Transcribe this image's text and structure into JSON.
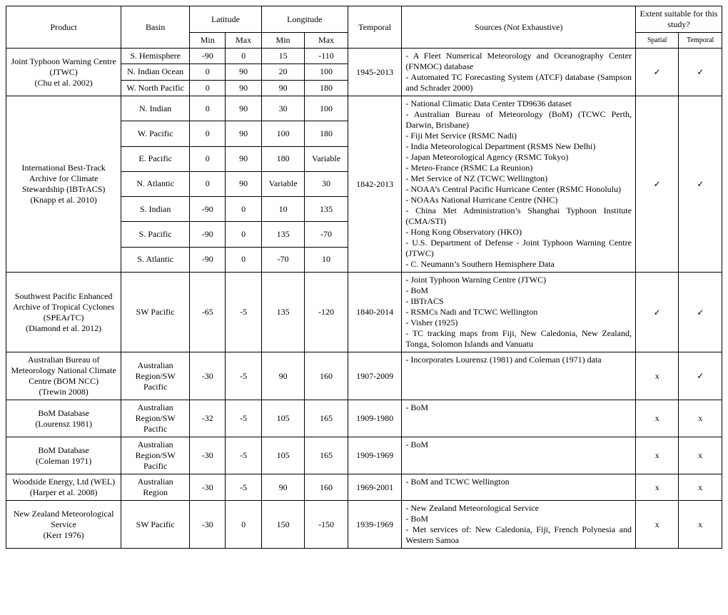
{
  "headers": {
    "product": "Product",
    "basin": "Basin",
    "latitude": "Latitude",
    "longitude": "Longitude",
    "temporal": "Temporal",
    "sources": "Sources (Not Exhaustive)",
    "extent": "Extent suitable for this study?",
    "min": "Min",
    "max": "Max",
    "spatial": "Spatial",
    "temporal2": "Temporal"
  },
  "check": "✓",
  "cross": "x",
  "jtwc": {
    "product": "Joint Typhoon Warning Centre (JTWC)\n(Chu et al. 2002)",
    "basins": [
      {
        "name": "S. Hemisphere",
        "latmin": "-90",
        "latmax": "0",
        "lonmin": "15",
        "lonmax": "-110"
      },
      {
        "name": "N. Indian Ocean",
        "latmin": "0",
        "latmax": "90",
        "lonmin": "20",
        "lonmax": "100"
      },
      {
        "name": "W. North Pacific",
        "latmin": "0",
        "latmax": "90",
        "lonmin": "90",
        "lonmax": "180"
      }
    ],
    "temporal": "1945-2013",
    "sources": "- A Fleet Numerical Meteorology and Oceanography Center (FNMOC) database\n- Automated TC Forecasting System (ATCF) database (Sampson and Schrader 2000)",
    "spatial": "✓",
    "temp": "✓"
  },
  "ibtracs": {
    "product": "International Best-Track Archive for Climate Stewardship (IBTrACS)\n(Knapp et al. 2010)",
    "basins": [
      {
        "name": "N. Indian",
        "latmin": "0",
        "latmax": "90",
        "lonmin": "30",
        "lonmax": "100"
      },
      {
        "name": "W. Pacific",
        "latmin": "0",
        "latmax": "90",
        "lonmin": "100",
        "lonmax": "180"
      },
      {
        "name": "E. Pacific",
        "latmin": "0",
        "latmax": "90",
        "lonmin": "180",
        "lonmax": "Variable"
      },
      {
        "name": "N. Atlantic",
        "latmin": "0",
        "latmax": "90",
        "lonmin": "Variable",
        "lonmax": "30"
      },
      {
        "name": "S. Indian",
        "latmin": "-90",
        "latmax": "0",
        "lonmin": "10",
        "lonmax": "135"
      },
      {
        "name": "S. Pacific",
        "latmin": "-90",
        "latmax": "0",
        "lonmin": "135",
        "lonmax": "-70"
      },
      {
        "name": "S. Atlantic",
        "latmin": "-90",
        "latmax": "0",
        "lonmin": "-70",
        "lonmax": "10"
      }
    ],
    "temporal": "1842-2013",
    "sources": "- National Climatic Data Center TD9636 dataset\n- Australian Bureau of Meteorology (BoM) (TCWC Perth, Darwin, Brisbane)\n- Fiji Met Service (RSMC Nadi)\n- India Meteorological Department (RSMS New Delhi)\n- Japan Meteorological Agency (RSMC Tokyo)\n- Meteo-France (RSMC La Reunion)\n- Met Service of NZ (TCWC Wellington)\n- NOAA’s Central Pacific Hurricane Center (RSMC Honolulu)\n- NOAAs National Hurricane Centre (NHC)\n- China Met Administration’s Shanghai Typhoon Institute (CMA/STI)\n- Hong Kong Observatory (HKO)\n- U.S. Department of Defense - Joint Typhoon Warning Centre (JTWC)\n- C. Neumann’s Southern Hemisphere Data",
    "spatial": "✓",
    "temp": "✓"
  },
  "speartc": {
    "product": "Southwest Pacific Enhanced Archive of Tropical Cyclones (SPEArTC)\n(Diamond et al. 2012)",
    "basin": "SW Pacific",
    "latmin": "-65",
    "latmax": "-5",
    "lonmin": "135",
    "lonmax": "-120",
    "temporal": "1840-2014",
    "sources": "- Joint Typhoon Warning Centre (JTWC)\n- BoM\n- IBTrACS\n- RSMCs Nadi and TCWC Wellington\n- Visher (1925)\n- TC tracking maps from Fiji, New Caledonia, New Zealand, Tonga, Solomon Islands and Vanuatu",
    "spatial": "✓",
    "temp": "✓"
  },
  "bomncc": {
    "product": "Australian Bureau of Meteorology National Climate Centre (BOM NCC)\n(Trewin 2008)",
    "basin": "Australian Region/SW Pacific",
    "latmin": "-30",
    "latmax": "-5",
    "lonmin": "90",
    "lonmax": "160",
    "temporal": "1907-2009",
    "sources": "- Incorporates Lourensz (1981) and Coleman (1971) data",
    "spatial": "x",
    "temp": "✓"
  },
  "lourensz": {
    "product": "BoM Database\n(Lourensz 1981)",
    "basin": "Australian Region/SW Pacific",
    "latmin": "-32",
    "latmax": "-5",
    "lonmin": "105",
    "lonmax": "165",
    "temporal": "1909-1980",
    "sources": "- BoM",
    "spatial": "x",
    "temp": "x"
  },
  "coleman": {
    "product": "BoM Database\n(Coleman 1971)",
    "basin": "Australian Region/SW Pacific",
    "latmin": "-30",
    "latmax": "-5",
    "lonmin": "105",
    "lonmax": "165",
    "temporal": "1909-1969",
    "sources": "- BoM",
    "spatial": "x",
    "temp": "x"
  },
  "wel": {
    "product": "Woodside Energy, Ltd (WEL)\n(Harper et al. 2008)",
    "basin": "Australian Region",
    "latmin": "-30",
    "latmax": "-5",
    "lonmin": "90",
    "lonmax": "160",
    "temporal": "1969-2001",
    "sources": "- BoM and TCWC Wellington",
    "spatial": "x",
    "temp": "x"
  },
  "nzms": {
    "product": "New Zealand Meteorological Service\n(Kerr 1976)",
    "basin": "SW Pacific",
    "latmin": "-30",
    "latmax": "0",
    "lonmin": "150",
    "lonmax": "-150",
    "temporal": "1939-1969",
    "sources": "- New Zealand Meteorological Service\n- BoM\n- Met services of: New Caledonia, Fiji, French Polynesia and Western Samoa",
    "spatial": "x",
    "temp": "x"
  }
}
